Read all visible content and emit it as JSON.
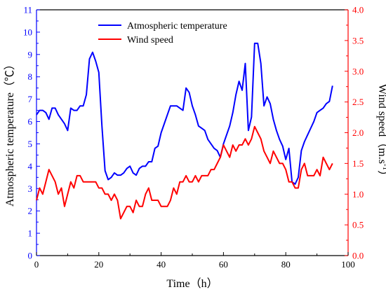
{
  "chart_data": {
    "type": "line",
    "xlabel": "Time（h）",
    "ylabel_left": "Atmospheric temperature（℃）",
    "ylabel_right_base": "Wind speed（m.s",
    "ylabel_right_sup": "-1",
    "ylabel_right_close": "）",
    "xlim": [
      0,
      100
    ],
    "ylim_left": [
      0,
      11
    ],
    "ylim_right": [
      0,
      4.0
    ],
    "x_ticks": [
      "0",
      "20",
      "40",
      "60",
      "80",
      "100"
    ],
    "y_left_ticks": [
      "0",
      "1",
      "2",
      "3",
      "4",
      "5",
      "6",
      "7",
      "8",
      "9",
      "10",
      "11"
    ],
    "y_right_ticks": [
      "0.0",
      "0.5",
      "1.0",
      "1.5",
      "2.0",
      "2.5",
      "3.0",
      "3.5",
      "4.0"
    ],
    "legend_position": "top-center",
    "grid": false,
    "series": [
      {
        "name": "Atmospheric temperature",
        "axis": "left",
        "color": "#0000ff",
        "values": [
          [
            0,
            6.3
          ],
          [
            1,
            6.5
          ],
          [
            2,
            6.5
          ],
          [
            3,
            6.4
          ],
          [
            4,
            6.1
          ],
          [
            5,
            6.6
          ],
          [
            6,
            6.6
          ],
          [
            7,
            6.3
          ],
          [
            8,
            6.1
          ],
          [
            9,
            5.9
          ],
          [
            10,
            5.6
          ],
          [
            11,
            6.6
          ],
          [
            12,
            6.5
          ],
          [
            13,
            6.5
          ],
          [
            14,
            6.7
          ],
          [
            15,
            6.7
          ],
          [
            16,
            7.2
          ],
          [
            17,
            8.8
          ],
          [
            18,
            9.1
          ],
          [
            19,
            8.7
          ],
          [
            20,
            8.2
          ],
          [
            21,
            5.8
          ],
          [
            22,
            3.8
          ],
          [
            23,
            3.4
          ],
          [
            24,
            3.5
          ],
          [
            25,
            3.7
          ],
          [
            26,
            3.6
          ],
          [
            27,
            3.6
          ],
          [
            28,
            3.7
          ],
          [
            29,
            3.9
          ],
          [
            30,
            4.0
          ],
          [
            31,
            3.7
          ],
          [
            32,
            3.6
          ],
          [
            33,
            3.9
          ],
          [
            34,
            4.0
          ],
          [
            35,
            4.0
          ],
          [
            36,
            4.2
          ],
          [
            37,
            4.2
          ],
          [
            38,
            4.8
          ],
          [
            39,
            4.9
          ],
          [
            40,
            5.5
          ],
          [
            41,
            5.9
          ],
          [
            42,
            6.3
          ],
          [
            43,
            6.7
          ],
          [
            44,
            6.7
          ],
          [
            45,
            6.7
          ],
          [
            46,
            6.6
          ],
          [
            47,
            6.5
          ],
          [
            48,
            7.5
          ],
          [
            49,
            7.3
          ],
          [
            50,
            6.7
          ],
          [
            51,
            6.3
          ],
          [
            52,
            5.8
          ],
          [
            53,
            5.7
          ],
          [
            54,
            5.6
          ],
          [
            55,
            5.2
          ],
          [
            56,
            5.0
          ],
          [
            57,
            4.8
          ],
          [
            58,
            4.7
          ],
          [
            59,
            4.4
          ],
          [
            60,
            5.0
          ],
          [
            61,
            5.4
          ],
          [
            62,
            5.8
          ],
          [
            63,
            6.4
          ],
          [
            64,
            7.2
          ],
          [
            65,
            7.8
          ],
          [
            66,
            7.4
          ],
          [
            67,
            8.6
          ],
          [
            68,
            5.6
          ],
          [
            69,
            6.2
          ],
          [
            70,
            9.5
          ],
          [
            71,
            9.5
          ],
          [
            72,
            8.6
          ],
          [
            73,
            6.7
          ],
          [
            74,
            7.1
          ],
          [
            75,
            6.8
          ],
          [
            76,
            6.1
          ],
          [
            77,
            5.6
          ],
          [
            78,
            5.2
          ],
          [
            79,
            4.9
          ],
          [
            80,
            4.3
          ],
          [
            81,
            4.8
          ],
          [
            82,
            3.3
          ],
          [
            83,
            3.2
          ],
          [
            84,
            3.5
          ],
          [
            85,
            4.7
          ],
          [
            86,
            5.1
          ],
          [
            87,
            5.4
          ],
          [
            88,
            5.7
          ],
          [
            89,
            6.0
          ],
          [
            90,
            6.4
          ],
          [
            91,
            6.5
          ],
          [
            92,
            6.6
          ],
          [
            93,
            6.8
          ],
          [
            94,
            6.9
          ],
          [
            95,
            7.6
          ]
        ]
      },
      {
        "name": "Wind speed",
        "axis": "right",
        "color": "#ff0000",
        "values": [
          [
            0,
            0.9
          ],
          [
            1,
            1.1
          ],
          [
            2,
            1.0
          ],
          [
            3,
            1.2
          ],
          [
            4,
            1.4
          ],
          [
            5,
            1.3
          ],
          [
            6,
            1.2
          ],
          [
            7,
            1.0
          ],
          [
            8,
            1.1
          ],
          [
            9,
            0.8
          ],
          [
            10,
            1.0
          ],
          [
            11,
            1.2
          ],
          [
            12,
            1.1
          ],
          [
            13,
            1.3
          ],
          [
            14,
            1.3
          ],
          [
            15,
            1.2
          ],
          [
            16,
            1.2
          ],
          [
            17,
            1.2
          ],
          [
            18,
            1.2
          ],
          [
            19,
            1.2
          ],
          [
            20,
            1.1
          ],
          [
            21,
            1.1
          ],
          [
            22,
            1.0
          ],
          [
            23,
            1.0
          ],
          [
            24,
            0.9
          ],
          [
            25,
            1.0
          ],
          [
            26,
            0.9
          ],
          [
            27,
            0.6
          ],
          [
            28,
            0.7
          ],
          [
            29,
            0.8
          ],
          [
            30,
            0.8
          ],
          [
            31,
            0.7
          ],
          [
            32,
            0.9
          ],
          [
            33,
            0.8
          ],
          [
            34,
            0.8
          ],
          [
            35,
            1.0
          ],
          [
            36,
            1.1
          ],
          [
            37,
            0.9
          ],
          [
            38,
            0.9
          ],
          [
            39,
            0.9
          ],
          [
            40,
            0.8
          ],
          [
            41,
            0.8
          ],
          [
            42,
            0.8
          ],
          [
            43,
            0.9
          ],
          [
            44,
            1.1
          ],
          [
            45,
            1.0
          ],
          [
            46,
            1.2
          ],
          [
            47,
            1.2
          ],
          [
            48,
            1.3
          ],
          [
            49,
            1.2
          ],
          [
            50,
            1.2
          ],
          [
            51,
            1.3
          ],
          [
            52,
            1.2
          ],
          [
            53,
            1.3
          ],
          [
            54,
            1.3
          ],
          [
            55,
            1.3
          ],
          [
            56,
            1.4
          ],
          [
            57,
            1.4
          ],
          [
            58,
            1.5
          ],
          [
            59,
            1.6
          ],
          [
            60,
            1.8
          ],
          [
            61,
            1.7
          ],
          [
            62,
            1.6
          ],
          [
            63,
            1.8
          ],
          [
            64,
            1.7
          ],
          [
            65,
            1.8
          ],
          [
            66,
            1.8
          ],
          [
            67,
            1.9
          ],
          [
            68,
            1.8
          ],
          [
            69,
            1.9
          ],
          [
            70,
            2.1
          ],
          [
            71,
            2.0
          ],
          [
            72,
            1.9
          ],
          [
            73,
            1.7
          ],
          [
            74,
            1.6
          ],
          [
            75,
            1.5
          ],
          [
            76,
            1.7
          ],
          [
            77,
            1.6
          ],
          [
            78,
            1.5
          ],
          [
            79,
            1.5
          ],
          [
            80,
            1.4
          ],
          [
            81,
            1.2
          ],
          [
            82,
            1.2
          ],
          [
            83,
            1.1
          ],
          [
            84,
            1.1
          ],
          [
            85,
            1.4
          ],
          [
            86,
            1.5
          ],
          [
            87,
            1.3
          ],
          [
            88,
            1.3
          ],
          [
            89,
            1.3
          ],
          [
            90,
            1.4
          ],
          [
            91,
            1.3
          ],
          [
            92,
            1.6
          ],
          [
            93,
            1.5
          ],
          [
            94,
            1.4
          ],
          [
            95,
            1.5
          ]
        ]
      }
    ]
  }
}
